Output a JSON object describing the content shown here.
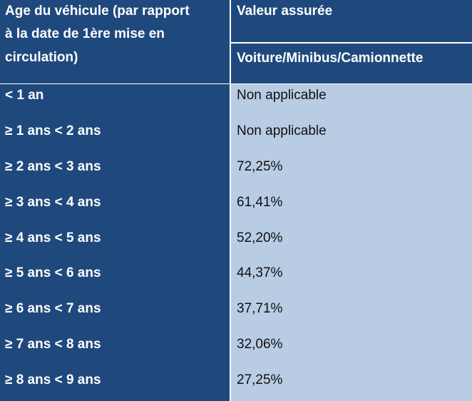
{
  "header": {
    "age_line1": "Age du véhicule (par rapport",
    "age_line2": "à la date de 1ère mise en",
    "age_line3": "circulation)",
    "valeur": "Valeur assurée",
    "vehicle_types": "Voiture/Minibus/Camionnette"
  },
  "rows": [
    {
      "age": "< 1 an",
      "value": "Non applicable"
    },
    {
      "age": "≥ 1 ans < 2 ans",
      "value": "Non applicable"
    },
    {
      "age": "≥ 2 ans < 3 ans",
      "value": "72,25%"
    },
    {
      "age": "≥ 3 ans < 4 ans",
      "value": "61,41%"
    },
    {
      "age": "≥ 4 ans < 5 ans",
      "value": "52,20%"
    },
    {
      "age": "≥ 5 ans < 6 ans",
      "value": "44,37%"
    },
    {
      "age": "≥ 6 ans < 7 ans",
      "value": "37,71%"
    },
    {
      "age": "≥ 7 ans < 8 ans",
      "value": "32,06%"
    },
    {
      "age": "≥ 8 ans < 9 ans",
      "value": "27,25%"
    }
  ],
  "colors": {
    "header_bg": "#1f497d",
    "value_bg": "#b8cce4",
    "grid": "#ffffff"
  }
}
